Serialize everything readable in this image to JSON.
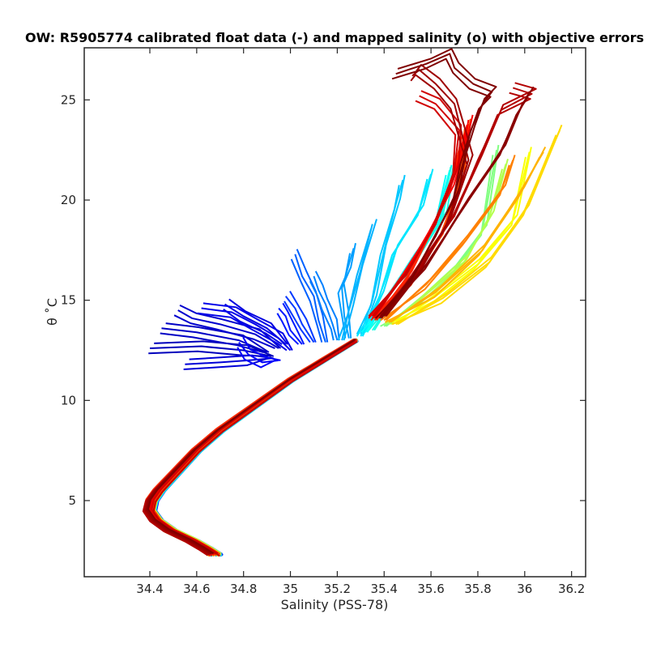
{
  "chart_data": {
    "type": "line",
    "title": "OW: R5905774 calibrated float data (-) and mapped salinity (o) with objective errors",
    "xlabel": "Salinity (PSS-78)",
    "ylabel": "θ ˚C",
    "xlim": [
      34.12,
      36.26
    ],
    "ylim": [
      1.2,
      27.6
    ],
    "xticks": [
      34.4,
      34.6,
      34.8,
      35,
      35.2,
      35.4,
      35.6,
      35.8,
      36,
      36.2
    ],
    "xtick_labels": [
      "34.4",
      "34.6",
      "34.8",
      "35",
      "35.2",
      "35.4",
      "35.6",
      "35.8",
      "36",
      "36.2"
    ],
    "yticks": [
      5,
      10,
      15,
      20,
      25
    ],
    "ytick_labels": [
      "5",
      "10",
      "15",
      "20",
      "25"
    ],
    "grid": false,
    "colormap": "jet",
    "colormap_stops": [
      "#00008f",
      "#0000ff",
      "#0080ff",
      "#00ffff",
      "#80ff80",
      "#ffff00",
      "#ff8000",
      "#ff0000",
      "#800000"
    ],
    "deep_branch": {
      "theta": [
        2.3,
        2.6,
        3.0,
        3.5,
        4.0,
        4.5,
        5.0,
        5.5,
        6.0,
        6.5,
        7.0,
        7.5,
        8.0,
        8.5,
        9.0,
        9.5,
        10.0,
        10.5,
        11.0,
        11.5,
        12.0,
        12.5,
        13.0
      ],
      "salinity": [
        34.68,
        34.64,
        34.58,
        34.49,
        34.43,
        34.4,
        34.41,
        34.44,
        34.48,
        34.52,
        34.56,
        34.6,
        34.65,
        34.7,
        34.76,
        34.82,
        34.88,
        34.94,
        35.0,
        35.07,
        35.14,
        35.21,
        35.28
      ]
    },
    "series": [
      {
        "color_index": 0.05,
        "salinity": [
          34.92,
          34.8,
          34.62,
          34.4
        ],
        "theta": [
          12.2,
          12.5,
          12.7,
          12.6
        ]
      },
      {
        "color_index": 0.06,
        "salinity": [
          34.9,
          34.78,
          34.6,
          34.45
        ],
        "theta": [
          12.4,
          13.0,
          13.4,
          13.6
        ]
      },
      {
        "color_index": 0.07,
        "salinity": [
          34.95,
          34.85,
          34.7,
          34.58,
          34.52
        ],
        "theta": [
          12.6,
          13.3,
          13.8,
          14.1,
          14.5
        ]
      },
      {
        "color_index": 0.08,
        "salinity": [
          34.92,
          34.82,
          34.7,
          34.55
        ],
        "theta": [
          12.1,
          12.0,
          11.9,
          11.8
        ]
      },
      {
        "color_index": 0.09,
        "salinity": [
          34.98,
          34.9,
          34.8,
          34.72
        ],
        "theta": [
          12.8,
          13.6,
          14.2,
          14.8
        ]
      },
      {
        "color_index": 0.1,
        "salinity": [
          35.0,
          34.95,
          34.85,
          34.75,
          34.62
        ],
        "theta": [
          12.5,
          13.1,
          13.8,
          14.4,
          14.6
        ]
      },
      {
        "color_index": 0.12,
        "salinity": [
          34.95,
          34.88,
          34.82,
          34.78
        ],
        "theta": [
          12.0,
          11.9,
          12.3,
          12.9
        ]
      },
      {
        "color_index": 0.15,
        "salinity": [
          35.05,
          35.0,
          34.98,
          34.95
        ],
        "theta": [
          12.8,
          13.5,
          14.2,
          14.6
        ]
      },
      {
        "color_index": 0.18,
        "salinity": [
          35.1,
          35.05,
          35.02,
          34.98
        ],
        "theta": [
          12.9,
          13.8,
          14.6,
          15.2
        ]
      },
      {
        "color_index": 0.22,
        "salinity": [
          35.15,
          35.12,
          35.1,
          35.05,
          35.02
        ],
        "theta": [
          12.9,
          14.0,
          15.2,
          16.2,
          17.3
        ]
      },
      {
        "color_index": 0.25,
        "salinity": [
          35.2,
          35.18,
          35.15,
          35.12,
          35.1
        ],
        "theta": [
          13.0,
          13.8,
          14.8,
          15.5,
          16.2
        ]
      },
      {
        "color_index": 0.28,
        "salinity": [
          35.25,
          35.23,
          35.22,
          35.24,
          35.27
        ],
        "theta": [
          13.1,
          14.2,
          15.6,
          16.4,
          17.6
        ]
      },
      {
        "color_index": 0.3,
        "salinity": [
          35.22,
          35.25,
          35.3,
          35.35
        ],
        "theta": [
          13.0,
          14.5,
          16.5,
          18.8
        ]
      },
      {
        "color_index": 0.32,
        "salinity": [
          35.3,
          35.35,
          35.4,
          35.45,
          35.48
        ],
        "theta": [
          13.3,
          15.0,
          17.5,
          19.8,
          21.0
        ]
      },
      {
        "color_index": 0.35,
        "salinity": [
          35.3,
          35.38,
          35.45,
          35.55,
          35.6
        ],
        "theta": [
          13.2,
          15.2,
          17.5,
          19.5,
          21.3
        ]
      },
      {
        "color_index": 0.38,
        "salinity": [
          35.32,
          35.4,
          35.52,
          35.62,
          35.68
        ],
        "theta": [
          13.4,
          15.0,
          17.0,
          18.8,
          21.5
        ]
      },
      {
        "color_index": 0.4,
        "salinity": [
          35.35,
          35.45,
          35.55,
          35.65,
          35.7
        ],
        "theta": [
          13.5,
          15.3,
          17.2,
          19.2,
          21.9
        ]
      },
      {
        "color_index": 0.5,
        "salinity": [
          35.4,
          35.55,
          35.7,
          35.82,
          35.88
        ],
        "theta": [
          13.7,
          15.0,
          16.5,
          18.5,
          22.5
        ]
      },
      {
        "color_index": 0.55,
        "salinity": [
          35.42,
          35.58,
          35.75,
          35.85,
          35.92
        ],
        "theta": [
          13.8,
          15.3,
          17.0,
          19.2,
          21.8
        ]
      },
      {
        "color_index": 0.62,
        "salinity": [
          35.45,
          35.62,
          35.8,
          35.95,
          36.02
        ],
        "theta": [
          13.9,
          15.2,
          16.8,
          19.0,
          22.4
        ]
      },
      {
        "color_index": 0.66,
        "salinity": [
          35.45,
          35.65,
          35.85,
          36.0,
          36.15
        ],
        "theta": [
          13.8,
          15.1,
          16.9,
          19.5,
          23.5
        ]
      },
      {
        "color_index": 0.7,
        "salinity": [
          35.42,
          35.62,
          35.82,
          35.98,
          36.08
        ],
        "theta": [
          13.9,
          15.4,
          17.5,
          20.4,
          22.4
        ]
      },
      {
        "color_index": 0.75,
        "salinity": [
          35.4,
          35.58,
          35.75,
          35.9,
          35.95
        ],
        "theta": [
          14.0,
          15.8,
          18.0,
          20.5,
          22.0
        ]
      },
      {
        "color_index": 0.8,
        "salinity": [
          35.38,
          35.52,
          35.65,
          35.72,
          35.76
        ],
        "theta": [
          14.2,
          16.0,
          18.3,
          20.8,
          23.8
        ]
      },
      {
        "color_index": 0.84,
        "salinity": [
          35.36,
          35.5,
          35.62,
          35.7,
          35.75
        ],
        "theta": [
          14.0,
          16.2,
          18.8,
          21.5,
          23.5
        ]
      },
      {
        "color_index": 0.88,
        "salinity": [
          35.35,
          35.48,
          35.6,
          35.68,
          35.74,
          35.76
        ],
        "theta": [
          14.1,
          16.3,
          18.5,
          20.5,
          22.5,
          24.0
        ]
      },
      {
        "color_index": 0.92,
        "salinity": [
          35.35,
          35.5,
          35.62,
          35.7,
          35.72,
          35.62,
          35.55
        ],
        "theta": [
          14.2,
          16.5,
          18.8,
          21.5,
          23.5,
          24.8,
          25.2
        ]
      },
      {
        "color_index": 0.95,
        "salinity": [
          35.4,
          35.55,
          35.7,
          35.8,
          35.9,
          36.03,
          35.95
        ],
        "theta": [
          14.3,
          16.8,
          19.2,
          22.0,
          24.5,
          25.3,
          25.6
        ]
      },
      {
        "color_index": 0.97,
        "salinity": [
          35.38,
          35.55,
          35.68,
          35.76,
          35.7,
          35.62,
          35.55,
          35.52
        ],
        "theta": [
          14.1,
          16.5,
          19.0,
          22.0,
          24.8,
          25.8,
          26.5,
          26.2
        ]
      },
      {
        "color_index": 0.99,
        "salinity": [
          35.4,
          35.58,
          35.75,
          35.9,
          35.98,
          36.02
        ],
        "theta": [
          14.2,
          16.8,
          19.8,
          22.5,
          24.5,
          25.4
        ]
      },
      {
        "color_index": 1.0,
        "salinity": [
          35.38,
          35.52,
          35.62,
          35.7,
          35.74,
          35.77,
          35.82,
          35.86,
          35.78,
          35.7,
          35.68,
          35.58,
          35.45
        ],
        "theta": [
          14.1,
          16.2,
          18.2,
          20.2,
          22.0,
          23.5,
          24.8,
          25.4,
          25.8,
          26.6,
          27.3,
          26.8,
          26.3
        ]
      }
    ]
  }
}
